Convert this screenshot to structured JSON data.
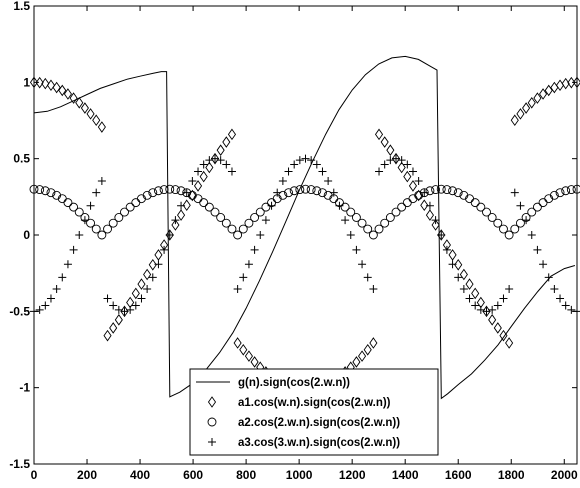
{
  "chart_data": {
    "type": "line",
    "xlim": [
      0,
      2048
    ],
    "ylim": [
      -1.5,
      1.5
    ],
    "xticks": [
      0,
      200,
      400,
      600,
      800,
      1000,
      1200,
      1400,
      1600,
      1800,
      2000
    ],
    "yticks": [
      -1.5,
      -1,
      -0.5,
      0,
      0.5,
      1,
      1.5
    ],
    "xtick_labels": [
      "0",
      "200",
      "400",
      "600",
      "800",
      "1000",
      "1200",
      "1400",
      "1600",
      "1800",
      "2000"
    ],
    "ytick_labels": [
      "-1.5",
      "-1",
      "-0.5",
      "0",
      "0.5",
      "1",
      "1.5"
    ],
    "grid": false,
    "legend_position": "bottom-center",
    "series": [
      {
        "name": "g(n).sign(cos(2.w.n))",
        "style": "solid-line",
        "color": "#000000",
        "x": [
          0,
          50,
          100,
          150,
          200,
          250,
          300,
          350,
          400,
          450,
          480,
          500,
          512,
          550,
          600,
          650,
          700,
          750,
          800,
          850,
          900,
          950,
          1000,
          1050,
          1100,
          1150,
          1200,
          1250,
          1300,
          1350,
          1400,
          1450,
          1500,
          1520,
          1536,
          1560,
          1600,
          1650,
          1700,
          1750,
          1800,
          1850,
          1900,
          1950,
          2000,
          2040
        ],
        "y": [
          0.8,
          0.81,
          0.84,
          0.88,
          0.92,
          0.96,
          0.99,
          1.02,
          1.04,
          1.06,
          1.07,
          1.07,
          -1.06,
          -1.03,
          -0.97,
          -0.88,
          -0.77,
          -0.64,
          -0.48,
          -0.3,
          -0.11,
          0.09,
          0.29,
          0.48,
          0.66,
          0.82,
          0.95,
          1.05,
          1.12,
          1.16,
          1.17,
          1.15,
          1.1,
          1.08,
          -1.07,
          -1.04,
          -0.98,
          -0.91,
          -0.82,
          -0.72,
          -0.6,
          -0.48,
          -0.37,
          -0.27,
          -0.22,
          -0.2
        ]
      },
      {
        "name": "a1.cos(w.n).sign(cos(2.w.n))",
        "style": "marker-diamond",
        "color": "#000000",
        "amplitude": 1.0,
        "frequency": 1
      },
      {
        "name": "a2.cos(2.w.n).sign(cos(2.w.n))",
        "style": "marker-circle",
        "color": "#000000",
        "amplitude": 0.3,
        "frequency": 2
      },
      {
        "name": "a3.cos(3.w.n).sign(cos(2.w.n))",
        "style": "marker-plus",
        "color": "#000000",
        "amplitude": -0.5,
        "frequency": 3
      }
    ]
  }
}
